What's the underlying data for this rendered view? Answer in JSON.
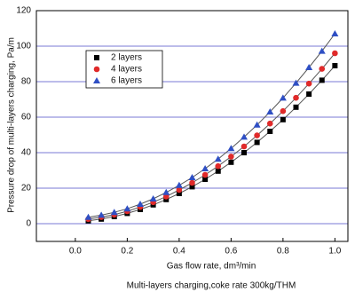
{
  "chart_data": {
    "type": "scatter",
    "xlabel": "Gas flow rate, dm³/min",
    "ylabel": "Pressure drop of multi-layers charging, Pa/m",
    "caption": "Multi-layers charging,coke rate 300kg/THM",
    "x": [
      0.05,
      0.1,
      0.15,
      0.2,
      0.25,
      0.3,
      0.35,
      0.4,
      0.45,
      0.5,
      0.55,
      0.6,
      0.65,
      0.7,
      0.75,
      0.8,
      0.85,
      0.9,
      0.95,
      1.0
    ],
    "series": [
      {
        "name": "2 layers",
        "color": "#000000",
        "marker": "square",
        "values": [
          1.6,
          2.6,
          4.0,
          5.8,
          8.0,
          10.6,
          13.6,
          17.0,
          20.8,
          25.0,
          29.6,
          34.6,
          40.0,
          45.8,
          52.0,
          58.6,
          65.6,
          73.0,
          80.8,
          89.0
        ]
      },
      {
        "name": "4 layers",
        "color": "#e02a2a",
        "marker": "circle",
        "values": [
          2.6,
          3.7,
          5.1,
          7.0,
          9.4,
          12.1,
          15.3,
          19.0,
          23.0,
          27.5,
          32.4,
          37.8,
          43.5,
          49.7,
          56.4,
          63.4,
          70.9,
          78.9,
          87.2,
          96.0
        ]
      },
      {
        "name": "6 layers",
        "color": "#2f4fc4",
        "marker": "triangle",
        "values": [
          3.6,
          4.8,
          6.4,
          8.4,
          11.0,
          14.0,
          17.6,
          21.6,
          26.0,
          31.0,
          36.4,
          42.4,
          48.8,
          55.6,
          63.0,
          70.8,
          79.2,
          88.0,
          97.2,
          107.0
        ]
      }
    ],
    "xlim": [
      -0.15,
      1.05
    ],
    "ylim": [
      -10,
      120
    ],
    "xticks": [
      {
        "value": 0,
        "label": "0.0"
      },
      0.2,
      0.4,
      0.6,
      0.8,
      {
        "value": 1,
        "label": "1.0"
      }
    ],
    "yticks": [
      0,
      20,
      40,
      60,
      80,
      100,
      120
    ],
    "grid": true,
    "grid_color": "#7a7ad6",
    "fit_color": "#555555",
    "legend": "upper-left"
  }
}
